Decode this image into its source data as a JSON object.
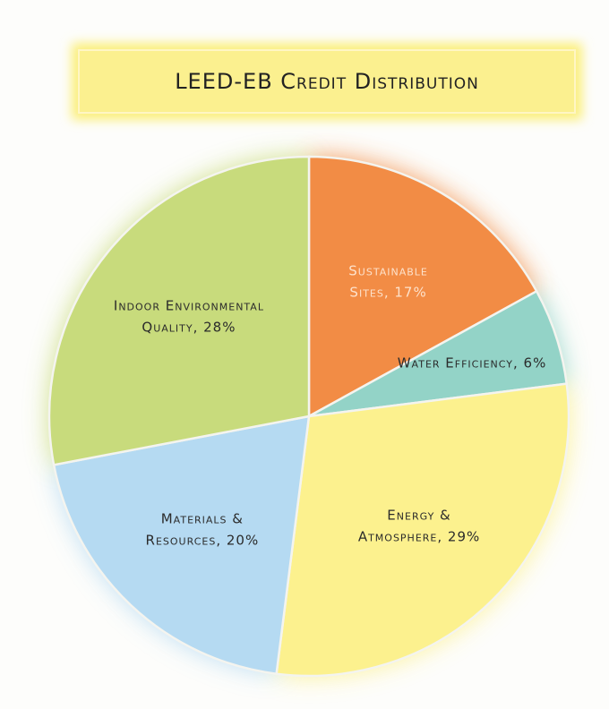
{
  "chart_data": {
    "type": "pie",
    "title": "LEED-EB Credit Distribution",
    "labels": [
      [
        "Sustainable",
        "Sites, 17%"
      ],
      [
        "Water Efficiency, 6%"
      ],
      [
        "Energy &",
        "Atmosphere, 29%"
      ],
      [
        "Materials &",
        "Resources, 20%"
      ],
      [
        "Indoor Environmental",
        "Quality, 28%"
      ]
    ],
    "values": [
      17,
      6,
      29,
      20,
      28
    ],
    "colors": [
      "#f28c45",
      "#93d3c7",
      "#fcf18e",
      "#b5daf2",
      "#c8db7c"
    ],
    "label_colors": [
      "#fde2cc",
      "#2b2b2b",
      "#2b2b2b",
      "#2b2b2b",
      "#2b2b2b"
    ]
  }
}
